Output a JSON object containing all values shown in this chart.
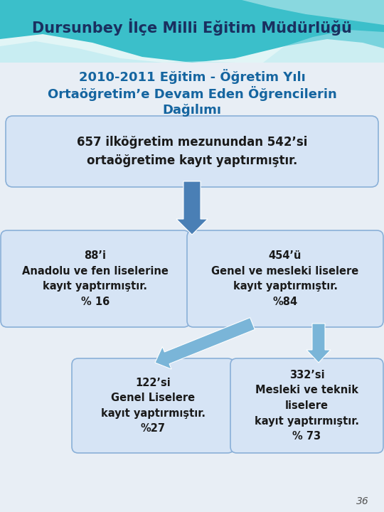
{
  "title_header": "Dursunbey İlçe Milli Eğitim Müdürlüğü",
  "subtitle_line1": "2010-2011 Eğitim - Öğretim Yılı",
  "subtitle_line2": "Ortaöğretim’e Devam Eden Öğrencilerin",
  "subtitle_line3": "Dağılımı",
  "box_main_text": "657 ilköğretim mezunundan 542’si\nortaöğretime kayıt yaptırmıştır.",
  "box_left_text": "88’i\nAnadolu ve fen liselerine\nkayıt yaptırmıştır.\n% 16",
  "box_right_text": "454’ü\nGenel ve mesleki liselere\nkayıt yaptırmıştır.\n%84",
  "box_bl_text": "122’si\nGenel Liselere\nkayıt yaptırmıştır.\n%27",
  "box_br_text": "332’si\nMesleki ve teknik\nliselere\nkayıt yaptırmıştır.\n% 73",
  "page_number": "36",
  "bg_color": "#e8eef5",
  "header_bg_color": "#3bbfca",
  "box_fill_light": "#d6e4f5",
  "box_fill_main": "#c8daf0",
  "box_border_color": "#8ab0d8",
  "header_text_color": "#1a3060",
  "subtitle_text_color": "#1565a0",
  "box_text_color": "#1a1a1a",
  "arrow_dark": "#4a7fb5",
  "arrow_light": "#7ab5d8",
  "wave_white": "#ffffff",
  "wave_light": "#b8e8f0"
}
